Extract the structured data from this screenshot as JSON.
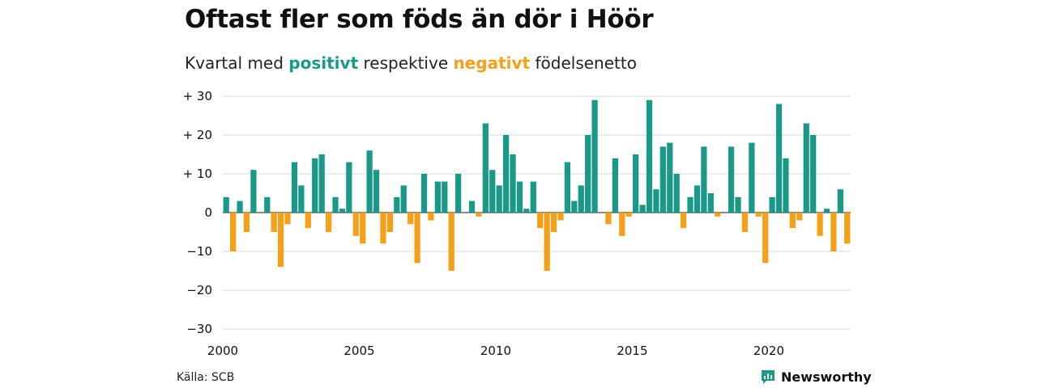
{
  "header": {
    "title": "Oftast fler som föds än dör i Höör",
    "subtitle_pre": "Kvartal med",
    "subtitle_pos": "positivt",
    "subtitle_mid": "respektive",
    "subtitle_neg": "negativt",
    "subtitle_post": "födelsenetto"
  },
  "footer": {
    "source": "Källa: SCB",
    "brand": "Newsworthy",
    "brand_icon": "bar-chart-logo-icon"
  },
  "colors": {
    "positive": "#1a9988",
    "negative": "#f5a01a",
    "grid": "#d9d9d9",
    "text": "#111111"
  },
  "chart_data": {
    "type": "bar",
    "title": "Oftast fler som föds än dör i Höör",
    "subtitle": "Kvartal med positivt respektive negativt födelsenetto",
    "xlabel": "",
    "ylabel": "",
    "x_start_year": 2000,
    "periods_per_year": 4,
    "ylim": [
      -30,
      30
    ],
    "yticks": [
      30,
      20,
      10,
      0,
      -10,
      -20,
      -30
    ],
    "ytick_labels": [
      "+ 30",
      "+ 20",
      "+ 10",
      "0",
      "−10",
      "−20",
      "−30"
    ],
    "xticks": [
      2000,
      2005,
      2010,
      2015,
      2020
    ],
    "xtick_labels": [
      "2000",
      "2005",
      "2010",
      "2015",
      "2020"
    ],
    "grid": true,
    "values": [
      4,
      -10,
      3,
      -5,
      11,
      0,
      4,
      -5,
      -14,
      -3,
      13,
      7,
      -4,
      14,
      15,
      -5,
      4,
      1,
      13,
      -6,
      -8,
      16,
      11,
      -8,
      -5,
      4,
      7,
      -3,
      -13,
      10,
      -2,
      8,
      8,
      -15,
      10,
      0,
      3,
      -1,
      23,
      11,
      7,
      20,
      15,
      8,
      1,
      8,
      -4,
      -15,
      -5,
      -2,
      13,
      3,
      7,
      20,
      29,
      0,
      -3,
      14,
      -6,
      -1,
      15,
      2,
      29,
      6,
      17,
      18,
      10,
      -4,
      4,
      7,
      17,
      5,
      -1,
      0,
      17,
      4,
      -5,
      18,
      -1,
      -13,
      4,
      28,
      14,
      -4,
      -2,
      23,
      20,
      -6,
      1,
      -10,
      6,
      -8
    ]
  }
}
